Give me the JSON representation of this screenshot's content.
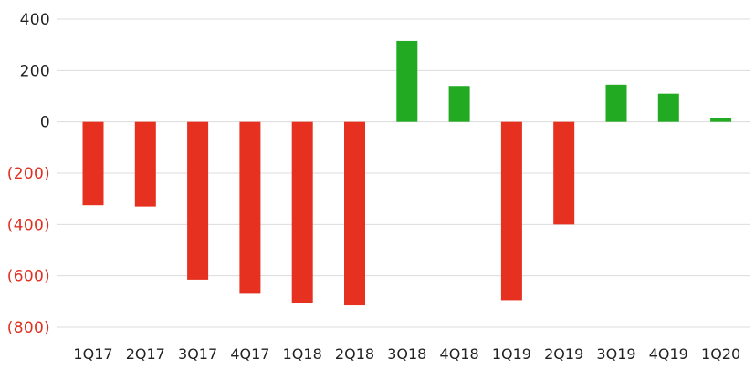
{
  "chart_data": {
    "type": "bar",
    "title": "",
    "xlabel": "",
    "ylabel": "",
    "categories": [
      "1Q17",
      "2Q17",
      "3Q17",
      "4Q17",
      "1Q18",
      "2Q18",
      "3Q18",
      "4Q18",
      "1Q19",
      "2Q19",
      "3Q19",
      "4Q19",
      "1Q20"
    ],
    "values": [
      -325,
      -330,
      -615,
      -670,
      -705,
      -715,
      315,
      140,
      -695,
      -400,
      145,
      110,
      15
    ],
    "ylim": [
      -800,
      400
    ],
    "yticks": [
      400,
      200,
      0,
      -200,
      -400,
      -600,
      -800
    ],
    "ytick_labels": [
      "400",
      "200",
      "0",
      "(200)",
      "(400)",
      "(600)",
      "(800)"
    ],
    "grid": true,
    "legend": "none",
    "colors": {
      "positive": "#22aa22",
      "negative": "#e63020",
      "negative_tick_text": "#e03020",
      "tick_text": "#222222",
      "grid": "#dcdcdc"
    }
  }
}
